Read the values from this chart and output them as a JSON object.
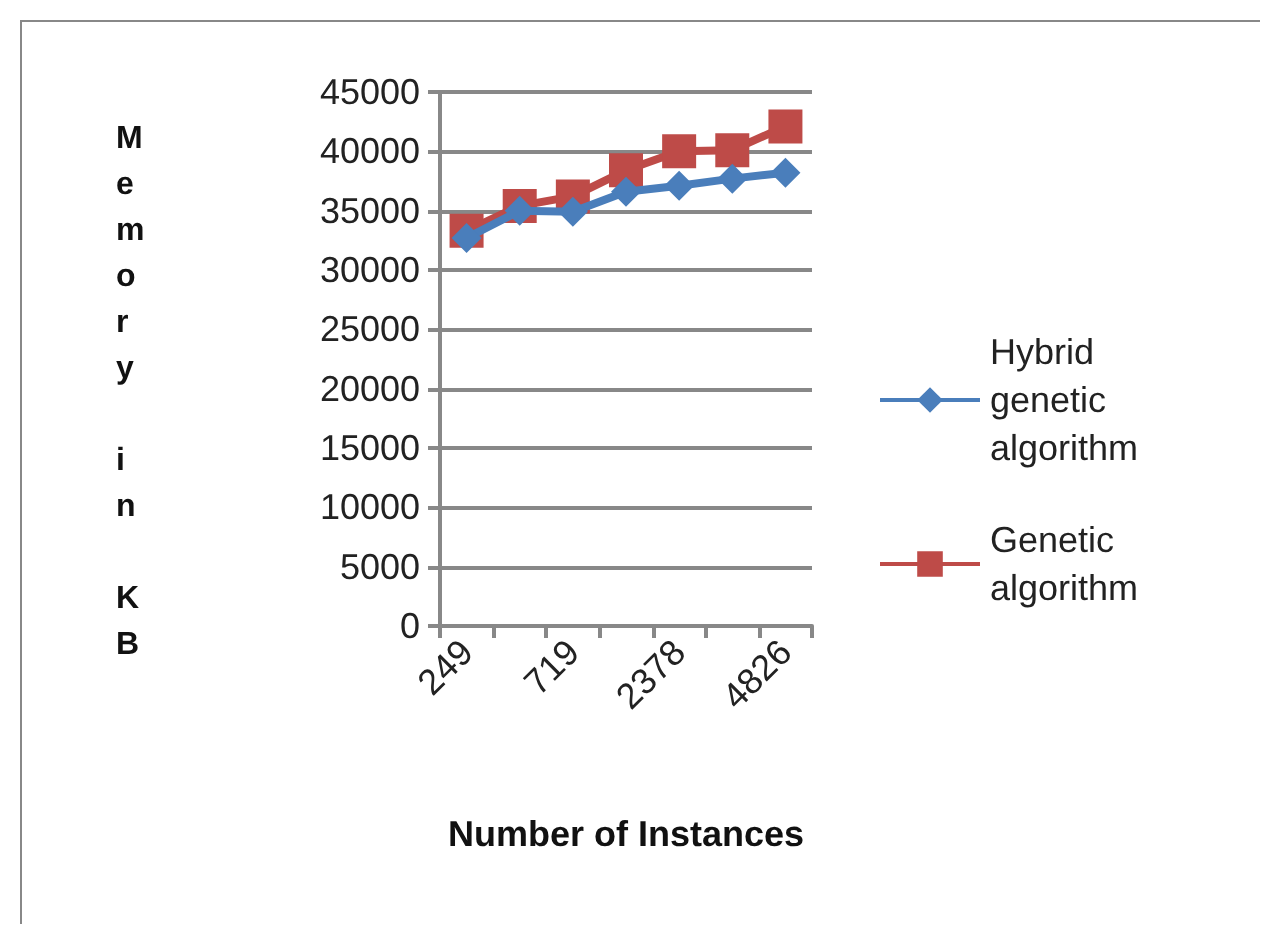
{
  "chart_data": {
    "type": "line",
    "xlabel": "Number of Instances",
    "ylabel": "Memory in KB",
    "categories": [
      "249",
      null,
      "719",
      null,
      "2378",
      null,
      "4826"
    ],
    "series": [
      {
        "name": "Hybrid genetic algorithm",
        "color": "#4a7ebb",
        "marker": "diamond",
        "values": [
          32700,
          35000,
          34900,
          36600,
          37100,
          37700,
          38200
        ]
      },
      {
        "name": "Genetic algorithm",
        "color": "#be4b48",
        "marker": "square",
        "values": [
          33300,
          35400,
          36200,
          38400,
          40000,
          40100,
          42100
        ]
      }
    ],
    "ylim": [
      0,
      45000
    ],
    "yticks": [
      0,
      5000,
      10000,
      15000,
      20000,
      25000,
      30000,
      35000,
      40000,
      45000
    ],
    "grid": "y",
    "legend": "right"
  }
}
